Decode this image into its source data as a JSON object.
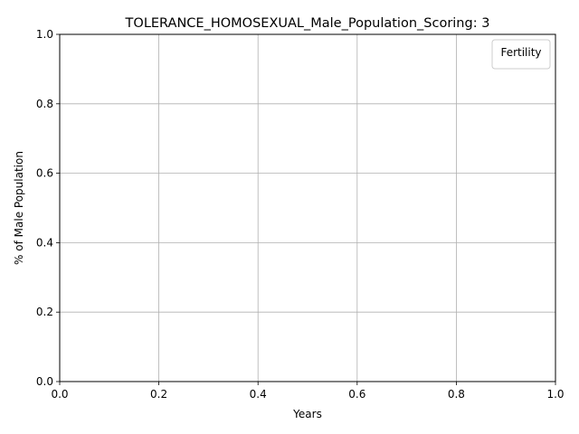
{
  "chart_data": {
    "type": "line",
    "title": "TOLERANCE_HOMOSEXUAL_Male_Population_Scoring: 3",
    "xlabel": "Years",
    "ylabel": "% of Male Population",
    "xlim": [
      0.0,
      1.0
    ],
    "ylim": [
      0.0,
      1.0
    ],
    "xticks": [
      "0.0",
      "0.2",
      "0.4",
      "0.6",
      "0.8",
      "1.0"
    ],
    "yticks": [
      "0.0",
      "0.2",
      "0.4",
      "0.6",
      "0.8",
      "1.0"
    ],
    "grid": true,
    "legend": {
      "title": "Fertility",
      "placement": "top-right",
      "entries": []
    },
    "series": []
  }
}
